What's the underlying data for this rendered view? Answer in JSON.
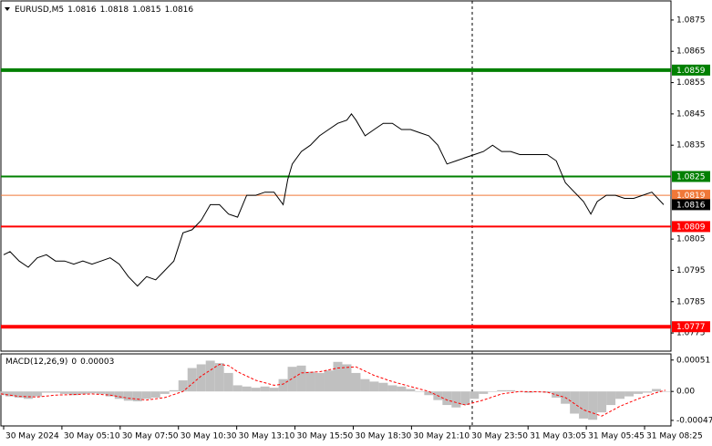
{
  "chart_data": [
    {
      "type": "line",
      "title": "EURUSD,M5",
      "ohlc": [
        1.0816,
        1.0818,
        1.0815,
        1.0816
      ],
      "x": [
        1.5,
        5,
        10,
        15,
        20,
        25,
        30,
        35,
        40,
        45,
        50,
        55,
        60,
        65,
        70,
        75,
        80,
        85,
        90,
        95,
        100,
        105,
        110,
        115,
        120,
        125,
        130,
        135,
        140,
        145,
        150,
        155,
        157.5,
        160,
        165,
        170,
        175,
        180,
        185,
        190,
        192.5,
        195,
        200,
        205,
        210,
        215,
        220,
        225,
        230,
        235,
        240,
        245,
        250,
        255,
        260,
        265,
        270,
        275,
        280,
        285,
        290,
        295,
        300,
        305,
        310,
        315,
        320,
        324,
        327.5,
        332.5,
        337.5,
        342.5,
        347.5,
        352.5,
        357.5,
        364
      ],
      "values": [
        1.08,
        1.0801,
        1.0798,
        1.0796,
        1.0799,
        1.08,
        1.0798,
        1.0798,
        1.0797,
        1.0798,
        1.0797,
        1.0798,
        1.0799,
        1.0797,
        1.0793,
        1.079,
        1.0793,
        1.0792,
        1.0795,
        1.0798,
        1.0807,
        1.0808,
        1.0811,
        1.0816,
        1.0816,
        1.0813,
        1.0812,
        1.0819,
        1.0819,
        1.082,
        1.082,
        1.0816,
        1.0824,
        1.0829,
        1.0833,
        1.0835,
        1.0838,
        1.084,
        1.0842,
        1.0843,
        1.0845,
        1.0843,
        1.0838,
        1.084,
        1.0842,
        1.0842,
        1.084,
        1.084,
        1.0839,
        1.0838,
        1.0835,
        1.0829,
        1.083,
        1.0831,
        1.0832,
        1.0833,
        1.0835,
        1.0833,
        1.0833,
        1.0832,
        1.0832,
        1.0832,
        1.0832,
        1.083,
        1.0823,
        1.082,
        1.0817,
        1.0813,
        1.0817,
        1.0819,
        1.0819,
        1.0818,
        1.0818,
        1.0819,
        1.082,
        1.0816
      ],
      "color": "#000000",
      "xlim": [
        0,
        368
      ],
      "ylim": [
        1.07692,
        1.08811
      ],
      "yticks": [
        1.0775,
        1.0785,
        1.0795,
        1.0805,
        1.0835,
        1.0845,
        1.0855,
        1.0865,
        1.0875
      ],
      "levels": [
        {
          "value": 1.0859,
          "color": "#008000",
          "line_width": 4
        },
        {
          "value": 1.0825,
          "color": "#008000",
          "line_width": 2
        },
        {
          "value": 1.0819,
          "color": "#f07838",
          "line_width": 1
        },
        {
          "value": 1.0809,
          "color": "#ff0000",
          "line_width": 2
        },
        {
          "value": 1.0777,
          "color": "#ff0000",
          "line_width": 4
        }
      ],
      "grid": false
    },
    {
      "type": "macd",
      "title": "MACD(12,26,9)",
      "readings": [
        -0.0,
        3e-05
      ],
      "histogram": {
        "color": "#c0c0c0",
        "x": [
          0,
          5,
          10,
          15,
          20,
          25,
          30,
          35,
          40,
          45,
          50,
          55,
          60,
          65,
          70,
          75,
          80,
          85,
          90,
          95,
          100,
          105,
          110,
          115,
          120,
          125,
          130,
          135,
          140,
          145,
          150,
          155,
          160,
          165,
          170,
          175,
          180,
          185,
          190,
          195,
          200,
          205,
          210,
          215,
          220,
          225,
          230,
          235,
          240,
          245,
          250,
          255,
          260,
          265,
          270,
          275,
          280,
          285,
          290,
          295,
          300,
          305,
          310,
          315,
          320,
          325,
          330,
          335,
          340,
          345,
          350,
          355,
          360,
          365
        ],
        "values": [
          -6e-05,
          -8e-05,
          -0.0001,
          -0.00012,
          -8e-05,
          -2e-05,
          -2e-05,
          -4e-05,
          -6e-05,
          -4e-05,
          -3e-05,
          -4e-05,
          -8e-05,
          -0.00012,
          -0.00015,
          -0.00016,
          -0.00012,
          -0.0001,
          -4e-05,
          2e-05,
          0.00018,
          0.00038,
          0.00044,
          0.0005,
          0.00046,
          0.0003,
          0.0001,
          8e-05,
          6e-05,
          8e-05,
          6e-05,
          0.0002,
          0.0004,
          0.00042,
          0.00032,
          0.0003,
          0.00034,
          0.00048,
          0.00044,
          0.0003,
          0.0002,
          0.00016,
          0.00014,
          0.0001,
          8e-05,
          4e-05,
          0,
          -6e-05,
          -0.00014,
          -0.00022,
          -0.00026,
          -0.00022,
          -0.00012,
          -4e-05,
          0,
          2e-05,
          2e-05,
          0,
          -2e-05,
          0,
          -2e-05,
          -0.0001,
          -0.0002,
          -0.00036,
          -0.00044,
          -0.00046,
          -0.00034,
          -0.00022,
          -0.00012,
          -8e-05,
          -4e-05,
          -2e-05,
          4e-05,
          0
        ]
      },
      "signal": {
        "color": "#ff0000",
        "x": [
          0,
          10,
          20,
          30,
          40,
          50,
          60,
          70,
          80,
          90,
          100,
          110,
          120,
          125,
          130,
          140,
          150,
          155,
          165,
          175,
          185,
          195,
          205,
          215,
          225,
          235,
          245,
          255,
          265,
          275,
          285,
          300,
          310,
          320,
          330,
          340,
          350,
          360,
          365
        ],
        "values": [
          -4e-05,
          -8e-05,
          -9e-05,
          -6e-05,
          -5e-05,
          -4e-05,
          -6e-05,
          -0.00011,
          -0.00014,
          -0.0001,
          0,
          0.00025,
          0.00044,
          0.00042,
          0.00032,
          0.00018,
          0.0001,
          0.00012,
          0.0003,
          0.00032,
          0.00038,
          0.0004,
          0.00026,
          0.00016,
          8e-05,
          0,
          -0.00014,
          -0.00022,
          -0.00014,
          -4e-05,
          0,
          -1e-05,
          -0.0001,
          -0.0003,
          -0.0004,
          -0.00024,
          -0.00012,
          -2e-05,
          2e-05
        ]
      },
      "xlim": [
        0,
        368
      ],
      "ylim": [
        -0.00056,
        0.00061
      ],
      "yticks": [
        -0.00047,
        {
          "value": 0,
          "label": "0.00"
        },
        0.00051
      ],
      "xticks": [
        {
          "value": 1.5,
          "label": "30 May 2024"
        },
        {
          "value": 33.5,
          "label": "30 May 05:10"
        },
        {
          "value": 65.5,
          "label": "30 May 07:50"
        },
        {
          "value": 97.5,
          "label": "30 May 10:30"
        },
        {
          "value": 129.5,
          "label": "30 May 13:10"
        },
        {
          "value": 161.5,
          "label": "30 May 15:50"
        },
        {
          "value": 193.5,
          "label": "30 May 18:30"
        },
        {
          "value": 225.5,
          "label": "30 May 21:10"
        },
        {
          "value": 257.5,
          "label": "30 May 23:50"
        },
        {
          "value": 289.5,
          "label": "31 May 03:05"
        },
        {
          "value": 321.5,
          "label": "31 May 05:45"
        },
        {
          "value": 353.5,
          "label": "31 May 08:25"
        }
      ]
    }
  ]
}
